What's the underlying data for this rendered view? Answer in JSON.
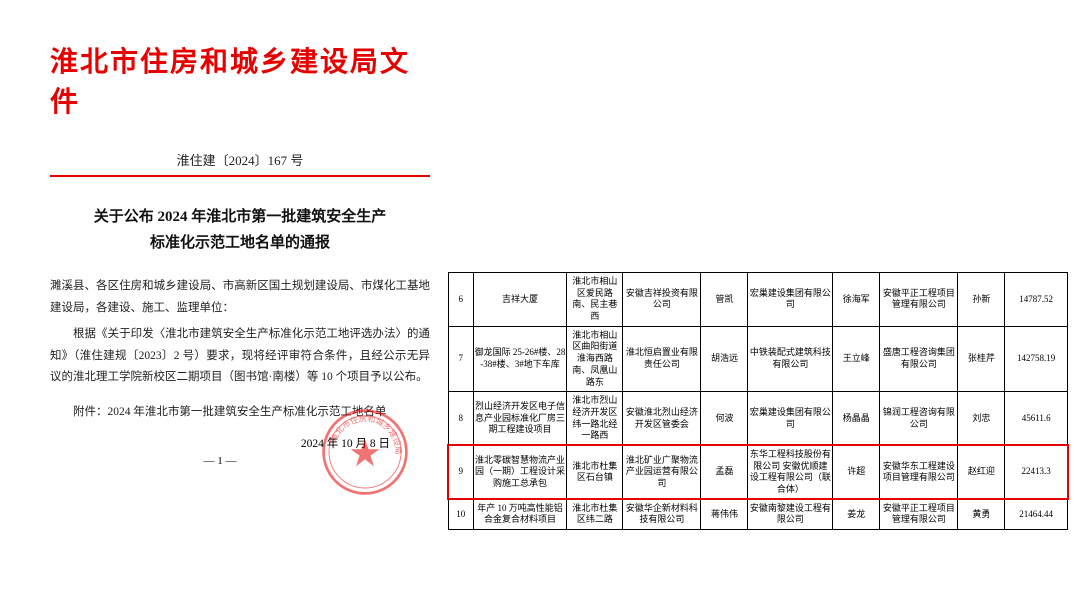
{
  "document": {
    "header_title": "淮北市住房和城乡建设局文件",
    "doc_number": "淮住建〔2024〕167 号",
    "notice_title_line1": "关于公布 2024 年淮北市第一批建筑安全生产",
    "notice_title_line2": "标准化示范工地名单的通报",
    "para1": "濉溪县、各区住房和城乡建设局、市高新区国土规划建设局、市煤化工基地建设局，各建设、施工、监理单位：",
    "para2": "根据《关于印发〈淮北市建筑安全生产标准化示范工地评选办法〉的通知》（淮住建规〔2023〕2 号）要求，现将经评审符合条件，且经公示无异议的淮北理工学院新校区二期项目（图书馆·南楼）等 10 个项目予以公布。",
    "attachment_label": "附件：2024 年淮北市第一批建筑安全生产标准化示范工地名单",
    "date_text": "2024 年 10 月 8 日",
    "page_num": "— 1 —",
    "stamp_text": "淮北市住房和城乡建设局"
  },
  "table": {
    "highlight_color": "#e60000",
    "border_color": "#000000",
    "rows": [
      {
        "idx": "6",
        "project": "吉祥大厦",
        "location": "淮北市相山区爱民路南、民主巷西",
        "build_unit": "安徽吉祥投资有限公司",
        "person1": "管凯",
        "company2": "宏巢建设集团有限公司",
        "person2": "徐海军",
        "supervisor": "安徽平正工程项目管理有限公司",
        "person3": "孙新",
        "value": "14787.52"
      },
      {
        "idx": "7",
        "project": "御龙国际 25-26#楼、28-38#楼、3#地下车库",
        "location": "淮北市相山区曲阳街道淮海西路南、凤凰山路东",
        "build_unit": "淮北恒启置业有限责任公司",
        "person1": "胡浩远",
        "company2": "中铁装配式建筑科技有限公司",
        "person2": "王立峰",
        "supervisor": "盛唐工程咨询集团有限公司",
        "person3": "张桂芹",
        "value": "142758.19"
      },
      {
        "idx": "8",
        "project": "烈山经济开发区电子信息产业园标准化厂房三期工程建设项目",
        "location": "淮北市烈山经济开发区纬一路北经一路西",
        "build_unit": "安徽淮北烈山经济开发区管委会",
        "person1": "何波",
        "company2": "宏巢建设集团有限公司",
        "person2": "杨晶晶",
        "supervisor": "锦润工程咨询有限公司",
        "person3": "刘忠",
        "value": "45611.6"
      },
      {
        "idx": "9",
        "project": "淮北零碳智慧物流产业园（一期）工程设计采购施工总承包",
        "location": "淮北市杜集区石台镇",
        "build_unit": "淮北矿业广聚物流产业园运营有限公司",
        "person1": "孟磊",
        "company2": "东华工程科技股份有限公司 安徽优顺建设工程有限公司（联合体）",
        "person2": "许超",
        "supervisor": "安徽华东工程建设项目管理有限公司",
        "person3": "赵红迎",
        "value": "22413.3",
        "highlighted": true
      },
      {
        "idx": "10",
        "project": "年产 10 万吨高性能铝合金复合材料项目",
        "location": "淮北市杜集区纬二路",
        "build_unit": "安徽华企新材料科技有限公司",
        "person1": "蒋伟伟",
        "company2": "安徽南黎建设工程有限公司",
        "person2": "姜龙",
        "supervisor": "安徽平正工程项目管理有限公司",
        "person3": "黄勇",
        "value": "21464.44"
      }
    ]
  }
}
